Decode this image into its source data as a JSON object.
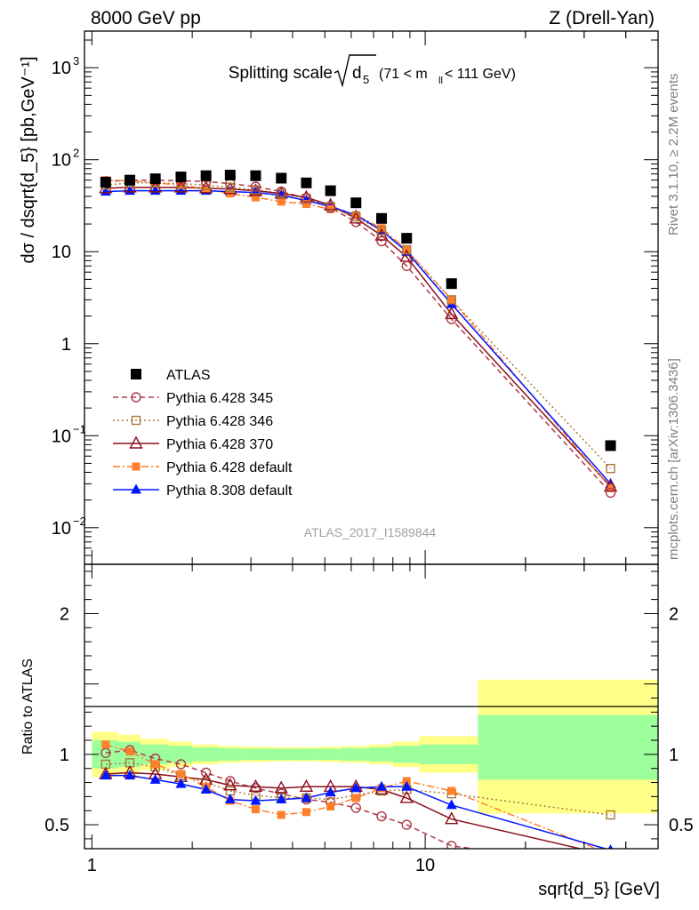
{
  "header": {
    "left": "8000 GeV pp",
    "right": "Z (Drell-Yan)"
  },
  "title": {
    "main": "Splitting scale",
    "sqrt_sym": "d",
    "sqrt_sub": "5",
    "cut_pre": "(71 < m",
    "cut_sub": "ll",
    "cut_post": " < 111 GeV)"
  },
  "side_labels": {
    "rivet": "Rivet 3.1.10, ≥ 2.2M events",
    "source": "mcplots.cern.ch [arXiv:1306.3436]"
  },
  "analysis_id": "ATLAS_2017_I1589844",
  "colors": {
    "atlas": "#000000",
    "p345": "#b03a48",
    "p346": "#a87a3c",
    "p370": "#8b0f1c",
    "p6def": "#ff7f2a",
    "p8def": "#0015ff",
    "band_inner": "#9cff9c",
    "band_outer": "#ffff88"
  },
  "chart_data": [
    {
      "type": "line",
      "panel": "main",
      "ylabel": "dσ / dsqrt{d_5} [pb,GeV⁻¹]",
      "xscale": "log",
      "yscale": "log",
      "xlim": [
        0.95,
        50
      ],
      "ylim": [
        0.004,
        2500
      ],
      "y_ticks": [
        {
          "v": 0.01,
          "t": "10",
          "e": "−2"
        },
        {
          "v": 0.1,
          "t": "10",
          "e": "−1"
        },
        {
          "v": 1,
          "t": "1",
          "e": ""
        },
        {
          "v": 10,
          "t": "10",
          "e": ""
        },
        {
          "v": 100,
          "t": "10",
          "e": "2"
        },
        {
          "v": 1000,
          "t": "10",
          "e": "3"
        }
      ],
      "legend_position": "lower-left",
      "series": [
        {
          "name": "ATLAS",
          "key": "atlas",
          "marker": "square-filled",
          "line": "none",
          "x": [
            1.1,
            1.3,
            1.55,
            1.85,
            2.2,
            2.6,
            3.1,
            3.7,
            4.4,
            5.2,
            6.2,
            7.4,
            8.8,
            12.0,
            36.0
          ],
          "y": [
            57,
            60,
            62,
            65,
            67,
            68,
            67,
            63,
            56,
            46,
            34,
            23,
            14,
            4.5,
            0.078
          ]
        },
        {
          "name": "Pythia 6.428 345",
          "key": "p345",
          "marker": "circle-open",
          "line": "dash",
          "x": [
            1.1,
            1.3,
            1.55,
            1.85,
            2.2,
            2.6,
            3.1,
            3.7,
            4.4,
            5.2,
            6.2,
            7.4,
            8.8,
            12.0,
            36.0
          ],
          "y": [
            58,
            60,
            60,
            59,
            58,
            55,
            51,
            45,
            38,
            30,
            21,
            13,
            7,
            1.85,
            0.024
          ]
        },
        {
          "name": "Pythia 6.428 346",
          "key": "p346",
          "marker": "square-open",
          "line": "dot",
          "x": [
            1.1,
            1.3,
            1.55,
            1.85,
            2.2,
            2.6,
            3.1,
            3.7,
            4.4,
            5.2,
            6.2,
            7.4,
            8.8,
            12.0,
            36.0
          ],
          "y": [
            53,
            56,
            56,
            55,
            53,
            50,
            47,
            43,
            38,
            31,
            24,
            17,
            10.5,
            3.0,
            0.044
          ]
        },
        {
          "name": "Pythia 6.428 370",
          "key": "p370",
          "marker": "triangle-open",
          "line": "solid",
          "x": [
            1.1,
            1.3,
            1.55,
            1.85,
            2.2,
            2.6,
            3.1,
            3.7,
            4.4,
            5.2,
            6.2,
            7.4,
            8.8,
            12.0,
            36.0
          ],
          "y": [
            49,
            50,
            50,
            50,
            49,
            48,
            46,
            43,
            39,
            32,
            23,
            15,
            8.8,
            2.1,
            0.028
          ]
        },
        {
          "name": "Pythia 6.428 default",
          "key": "p6def",
          "marker": "square-filled-small",
          "line": "dashdot",
          "x": [
            1.1,
            1.3,
            1.55,
            1.85,
            2.2,
            2.6,
            3.1,
            3.7,
            4.4,
            5.2,
            6.2,
            7.4,
            8.8,
            12.0,
            36.0
          ],
          "y": [
            60,
            59,
            56,
            53,
            48,
            43,
            39,
            35,
            33,
            29,
            25,
            18,
            10.5,
            3.0,
            0.027
          ]
        },
        {
          "name": "Pythia 8.308 default",
          "key": "p8def",
          "marker": "triangle-filled",
          "line": "solid",
          "x": [
            1.1,
            1.3,
            1.55,
            1.85,
            2.2,
            2.6,
            3.1,
            3.7,
            4.4,
            5.2,
            6.2,
            7.4,
            8.8,
            12.0,
            36.0
          ],
          "y": [
            45,
            46,
            46,
            46,
            46,
            45,
            44,
            41,
            36,
            31,
            25,
            17,
            10.0,
            2.7,
            0.03
          ]
        }
      ]
    },
    {
      "type": "line",
      "panel": "ratio",
      "ylabel": "Ratio to ATLAS",
      "xlabel": "sqrt{d_5} [GeV]",
      "xscale": "log",
      "xlim": [
        0.95,
        50
      ],
      "ylim": [
        0.33,
        2.35
      ],
      "x_ticks": [
        {
          "v": 1,
          "t": "1"
        },
        {
          "v": 10,
          "t": "10"
        }
      ],
      "y_ticks": [
        {
          "v": 0.5,
          "t": "0.5"
        },
        {
          "v": 1,
          "t": "1"
        },
        {
          "v": 2,
          "t": "2"
        }
      ],
      "bands": {
        "edges": [
          1.0,
          1.2,
          1.4,
          1.7,
          2.0,
          2.4,
          2.8,
          3.4,
          4.0,
          4.8,
          5.6,
          6.8,
          8.0,
          9.6,
          14.4,
          50
        ],
        "inner": [
          [
            0.9,
            1.1
          ],
          [
            0.91,
            1.09
          ],
          [
            0.93,
            1.07
          ],
          [
            0.94,
            1.06
          ],
          [
            0.95,
            1.05
          ],
          [
            0.955,
            1.045
          ],
          [
            0.96,
            1.04
          ],
          [
            0.96,
            1.04
          ],
          [
            0.96,
            1.04
          ],
          [
            0.96,
            1.04
          ],
          [
            0.955,
            1.045
          ],
          [
            0.95,
            1.05
          ],
          [
            0.94,
            1.06
          ],
          [
            0.93,
            1.07
          ],
          [
            0.82,
            1.28
          ]
        ],
        "outer": [
          [
            0.84,
            1.16
          ],
          [
            0.86,
            1.14
          ],
          [
            0.89,
            1.11
          ],
          [
            0.91,
            1.09
          ],
          [
            0.93,
            1.07
          ],
          [
            0.94,
            1.06
          ],
          [
            0.945,
            1.055
          ],
          [
            0.95,
            1.05
          ],
          [
            0.95,
            1.05
          ],
          [
            0.945,
            1.055
          ],
          [
            0.94,
            1.06
          ],
          [
            0.93,
            1.07
          ],
          [
            0.91,
            1.09
          ],
          [
            0.87,
            1.13
          ],
          [
            0.58,
            1.53
          ]
        ]
      },
      "series": [
        {
          "name": "Pythia 6.428 345",
          "key": "p345",
          "x": [
            1.1,
            1.3,
            1.55,
            1.85,
            2.2,
            2.6,
            3.1,
            3.7,
            4.4,
            5.2,
            6.2,
            7.4,
            8.8,
            12.0,
            36.0
          ],
          "y": [
            1.01,
            1.03,
            0.97,
            0.93,
            0.87,
            0.81,
            0.76,
            0.72,
            0.68,
            0.66,
            0.62,
            0.56,
            0.5,
            0.35,
            0.2
          ]
        },
        {
          "name": "Pythia 6.428 346",
          "key": "p346",
          "x": [
            1.1,
            1.3,
            1.55,
            1.85,
            2.2,
            2.6,
            3.1,
            3.7,
            4.4,
            5.2,
            6.2,
            7.4,
            8.8,
            12.0,
            36.0
          ],
          "y": [
            0.93,
            0.94,
            0.91,
            0.85,
            0.8,
            0.74,
            0.71,
            0.69,
            0.69,
            0.68,
            0.71,
            0.74,
            0.75,
            0.72,
            0.57
          ]
        },
        {
          "name": "Pythia 6.428 370",
          "key": "p370",
          "x": [
            1.1,
            1.3,
            1.55,
            1.85,
            2.2,
            2.6,
            3.1,
            3.7,
            4.4,
            5.2,
            6.2,
            7.4,
            8.8,
            12.0,
            36.0
          ],
          "y": [
            0.86,
            0.87,
            0.86,
            0.84,
            0.82,
            0.78,
            0.77,
            0.76,
            0.77,
            0.77,
            0.77,
            0.75,
            0.69,
            0.54,
            0.28
          ]
        },
        {
          "name": "Pythia 6.428 default",
          "key": "p6def",
          "x": [
            1.1,
            1.3,
            1.55,
            1.85,
            2.2,
            2.6,
            3.1,
            3.7,
            4.4,
            5.2,
            6.2,
            7.4,
            8.8,
            12.0,
            36.0
          ],
          "y": [
            1.07,
            1.02,
            0.93,
            0.86,
            0.77,
            0.67,
            0.61,
            0.57,
            0.59,
            0.63,
            0.69,
            0.76,
            0.81,
            0.74,
            0.29
          ]
        },
        {
          "name": "Pythia 8.308 default",
          "key": "p8def",
          "x": [
            1.1,
            1.3,
            1.55,
            1.85,
            2.2,
            2.6,
            3.1,
            3.7,
            4.4,
            5.2,
            6.2,
            7.4,
            8.8,
            12.0,
            36.0
          ],
          "y": [
            0.85,
            0.85,
            0.82,
            0.79,
            0.75,
            0.68,
            0.67,
            0.68,
            0.69,
            0.73,
            0.76,
            0.77,
            0.77,
            0.64,
            0.32
          ]
        }
      ]
    }
  ]
}
